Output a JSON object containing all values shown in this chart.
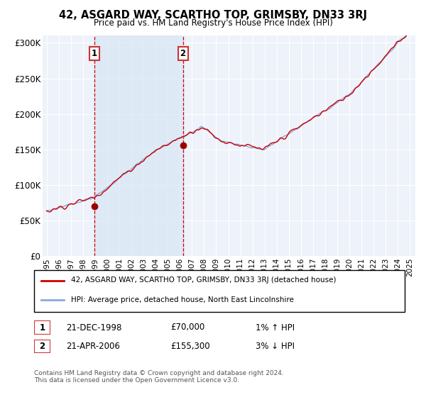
{
  "title": "42, ASGARD WAY, SCARTHO TOP, GRIMSBY, DN33 3RJ",
  "subtitle": "Price paid vs. HM Land Registry's House Price Index (HPI)",
  "ylabel_ticks": [
    "£0",
    "£50K",
    "£100K",
    "£150K",
    "£200K",
    "£250K",
    "£300K"
  ],
  "ytick_values": [
    0,
    50000,
    100000,
    150000,
    200000,
    250000,
    300000
  ],
  "ylim": [
    0,
    310000
  ],
  "sale1_year": 1998,
  "sale1_month": 12,
  "sale1_price": 70000,
  "sale2_year": 2006,
  "sale2_month": 4,
  "sale2_price": 155300,
  "legend_line1": "42, ASGARD WAY, SCARTHO TOP, GRIMSBY, DN33 3RJ (detached house)",
  "legend_line2": "HPI: Average price, detached house, North East Lincolnshire",
  "table_row1": [
    "1",
    "21-DEC-1998",
    "£70,000",
    "1% ↑ HPI"
  ],
  "table_row2": [
    "2",
    "21-APR-2006",
    "£155,300",
    "3% ↓ HPI"
  ],
  "footnote": "Contains HM Land Registry data © Crown copyright and database right 2024.\nThis data is licensed under the Open Government Licence v3.0.",
  "background_color": "#ffffff",
  "plot_bg_color": "#eef2fa",
  "grid_color": "#ffffff",
  "line_color_red": "#cc0000",
  "line_color_blue": "#88aadd",
  "sale_marker_color": "#990000",
  "vline_color": "#cc0000",
  "shade_color": "#d8e6f5",
  "box_edge_color": "#cc3333",
  "xlim_left": 1994.7,
  "xlim_right": 2025.5,
  "x_start_year": 1995,
  "x_end_year": 2025
}
